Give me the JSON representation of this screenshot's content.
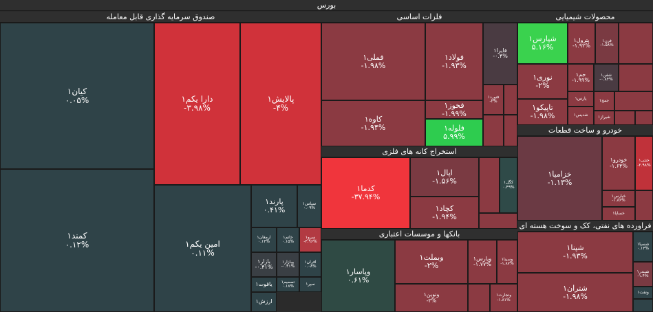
{
  "title": "بورس",
  "chart_data": {
    "type": "treemap",
    "sectors": [
      {
        "name": "صندوق سرمایه گذاری قابل معامله"
      },
      {
        "name": "فلزات اساسی"
      },
      {
        "name": "محصولات شیمیایی"
      },
      {
        "name": "خودرو و ساخت قطعات"
      },
      {
        "name": "استخراج کانه های فلزی"
      },
      {
        "name": "بانکها و موسسات اعتباری"
      },
      {
        "name": "فراورده های نفتی، کک و سوخت هسته ای"
      }
    ],
    "tiles": [
      {
        "name": "کیان۱",
        "change": "۰.۰۵%",
        "color": "#2f4348"
      },
      {
        "name": "دارا یکم۱",
        "change": "-۳.۹۸%",
        "color": "#d0323a"
      },
      {
        "name": "پالایش۱",
        "change": "-۴%",
        "color": "#d0323a"
      },
      {
        "name": "کمند۱",
        "change": "۰.۱۲%",
        "color": "#2f4348"
      },
      {
        "name": "امین یکم۱",
        "change": "۰.۱۱%",
        "color": "#2f4348"
      },
      {
        "name": "پارند۱",
        "change": "۰.۴۱%",
        "color": "#2f4348"
      },
      {
        "name": "سپاس۱",
        "change": "۰.۰۹%",
        "color": "#2f4348"
      },
      {
        "name": "ارمغان۱",
        "change": "۰.۱۳%",
        "color": "#2f4348"
      },
      {
        "name": "خاتم۱",
        "change": "۰.۱۵%",
        "color": "#2f4348"
      },
      {
        "name": "سرو۱",
        "change": "-۳.۹۶%",
        "color": "#b23a42"
      },
      {
        "name": "بازار۱",
        "change": "-۰.۴۱%",
        "color": "#3a3f44"
      },
      {
        "name": "وبازار۱",
        "change": "-۰.۴۱%",
        "color": "#3a3f44"
      },
      {
        "name": "افران۱",
        "change": "۰.۰۸%",
        "color": "#2f4348"
      },
      {
        "name": "تصمیم۱",
        "change": "۰.۱۸%",
        "color": "#2f4348"
      },
      {
        "name": "یاقوت۱",
        "change": "",
        "color": "#2f4348"
      },
      {
        "name": "سپر۱",
        "change": "",
        "color": "#2f4348"
      },
      {
        "name": "ارزش۱",
        "change": "",
        "color": "#2f4348"
      },
      {
        "name": "فملی۱",
        "change": "-۱.۹۸%",
        "color": "#8b3a42"
      },
      {
        "name": "فولاد۱",
        "change": "-۱.۹۳%",
        "color": "#8b3a42"
      },
      {
        "name": "فایرا۱",
        "change": "-۰.۴%",
        "color": "#4a3b42"
      },
      {
        "name": "فخوز۱",
        "change": "-۱.۹۹%",
        "color": "#8b3a42"
      },
      {
        "name": "فنورد۱",
        "change": "-۲%",
        "color": "#8b3a42"
      },
      {
        "name": "کاوه۱",
        "change": "-۱.۹۴%",
        "color": "#8b3a42"
      },
      {
        "name": "فلوله۱",
        "change": "۵.۹۹%",
        "color": "#2ecc4f"
      },
      {
        "name": "شپارس۱",
        "change": "۵.۱۶%",
        "color": "#3ad24e"
      },
      {
        "name": "پترول۱",
        "change": "-۱.۹۲%",
        "color": "#8b3a42"
      },
      {
        "name": "فرن۱",
        "change": "-۱.۵۸%",
        "color": "#7a3a42"
      },
      {
        "name": "نوری۱",
        "change": "-۲%",
        "color": "#8b3a42"
      },
      {
        "name": "جم۱",
        "change": "-۱.۹۹%",
        "color": "#8b3a42"
      },
      {
        "name": "شفن۱",
        "change": "-۰.۸۴%",
        "color": "#4a3b42"
      },
      {
        "name": "پارس۱",
        "change": "",
        "color": "#8b3a42"
      },
      {
        "name": "جمج۱",
        "change": "",
        "color": "#8b3a42"
      },
      {
        "name": "تاپیکو۱",
        "change": "-۱.۹۸%",
        "color": "#8b3a42"
      },
      {
        "name": "شدیس۱",
        "change": "",
        "color": "#8b3a42"
      },
      {
        "name": "شیراز۱",
        "change": "",
        "color": "#8b3a42"
      },
      {
        "name": "خزامیا۱",
        "change": "-۱.۱۳%",
        "color": "#6b3a44"
      },
      {
        "name": "خودرو۱",
        "change": "-۱.۶۴%",
        "color": "#8b3a42"
      },
      {
        "name": "خنثی۱",
        "change": "-۲.۹۸%",
        "color": "#c0323a"
      },
      {
        "name": "خپارس۱",
        "change": "-۱.۸۶%",
        "color": "#8b3a42"
      },
      {
        "name": "خساپا۱",
        "change": "",
        "color": "#8b3a42"
      },
      {
        "name": "کدما۱",
        "change": "-۳۷.۹۴%",
        "color": "#f0353c"
      },
      {
        "name": "اپال۱",
        "change": "-۱.۵۶%",
        "color": "#7a3a42"
      },
      {
        "name": "کچاد۱",
        "change": "-۱.۹۴%",
        "color": "#8b3a42"
      },
      {
        "name": "کگل۱",
        "change": "۰.۴۹%",
        "color": "#2f4a48"
      },
      {
        "name": "وپاسار۱",
        "change": "۰.۶۱%",
        "color": "#2f4a44"
      },
      {
        "name": "وبملت۱",
        "change": "-۲%",
        "color": "#8b3a42"
      },
      {
        "name": "وپارس۱",
        "change": "-۱.۷۷%",
        "color": "#8b3a42"
      },
      {
        "name": "وسینا۱",
        "change": "-۱.۸۷%",
        "color": "#8b3a42"
      },
      {
        "name": "ونوین۱",
        "change": "-۲%",
        "color": "#8b3a42"
      },
      {
        "name": "وتجارت۱",
        "change": "-۱.۸۱%",
        "color": "#8b3a42"
      },
      {
        "name": "شپنا۱",
        "change": "-۱.۹۳%",
        "color": "#8b3a42"
      },
      {
        "name": "شتران۱",
        "change": "-۱.۹۸%",
        "color": "#8b3a42"
      },
      {
        "name": "شسپا۱",
        "change": "۰.۱۳%",
        "color": "#2f4348"
      },
      {
        "name": "شبندر۱",
        "change": "-۱.۴%",
        "color": "#7a3a42"
      },
      {
        "name": "ونفت۱",
        "change": "",
        "color": "#2f4348"
      }
    ]
  }
}
